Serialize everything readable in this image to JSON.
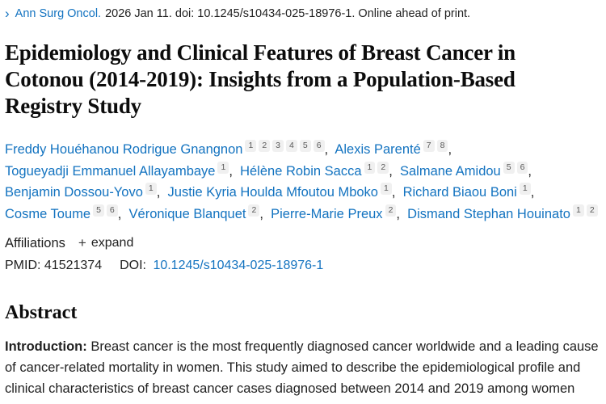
{
  "colors": {
    "link_blue": "#1373c0",
    "text_dark": "#212121",
    "badge_bg": "#f0f0f0",
    "badge_text": "#5a5a5a"
  },
  "citation": {
    "chevron_icon": "›",
    "journal": "Ann Surg Oncol.",
    "rest": "2026 Jan 11. doi: 10.1245/s10434-025-18976-1. Online ahead of print."
  },
  "title": "Epidemiology and Clinical Features of Breast Cancer in Cotonou (2014-2019): Insights from a Population-Based Registry Study",
  "authors": [
    {
      "name": "Freddy Houéhanou Rodrigue Gnangnon",
      "sups": [
        "1",
        "2",
        "3",
        "4",
        "5",
        "6"
      ]
    },
    {
      "name": "Alexis Parenté",
      "sups": [
        "7",
        "8"
      ],
      "break_after": true
    },
    {
      "name": "Togueyadji Emmanuel Allayambaye",
      "sups": [
        "1"
      ]
    },
    {
      "name": "Hélène Robin Sacca",
      "sups": [
        "1",
        "2"
      ]
    },
    {
      "name": "Salmane Amidou",
      "sups": [
        "5",
        "6"
      ],
      "break_after": true
    },
    {
      "name": "Benjamin Dossou-Yovo",
      "sups": [
        "1"
      ]
    },
    {
      "name": "Justie Kyria Houlda Mfoutou Mboko",
      "sups": [
        "1"
      ]
    },
    {
      "name": "Richard Biaou Boni",
      "sups": [
        "1"
      ],
      "break_after": true
    },
    {
      "name": "Cosme Toume",
      "sups": [
        "5",
        "6"
      ]
    },
    {
      "name": "Véronique Blanquet",
      "sups": [
        "2"
      ]
    },
    {
      "name": "Pierre-Marie Preux",
      "sups": [
        "2"
      ]
    },
    {
      "name": "Dismand Stephan Houinato",
      "sups": [
        "1",
        "2"
      ]
    }
  ],
  "affiliations": {
    "label": "Affiliations",
    "expand_icon": "+",
    "expand_label": "expand"
  },
  "ids": {
    "pmid_label": "PMID:",
    "pmid": "41521374",
    "doi_label": "DOI:",
    "doi": "10.1245/s10434-025-18976-1"
  },
  "abstract": {
    "heading": "Abstract",
    "sections": [
      {
        "label": "Introduction:",
        "text": "Breast cancer is the most frequently diagnosed cancer worldwide and a leading cause of cancer-related mortality in women. This study aimed to describe the epidemiological profile and clinical characteristics of breast cancer cases diagnosed between 2014 and 2019 among women residing in Cotonou, Benin."
      }
    ]
  }
}
